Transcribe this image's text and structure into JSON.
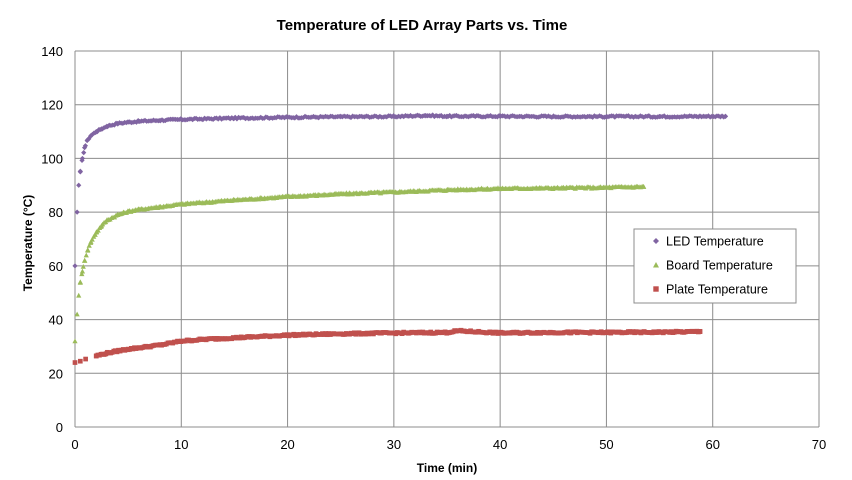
{
  "chart_data": {
    "type": "scatter",
    "title": "Temperature of LED Array Parts vs. Time",
    "xlabel": "Time (min)",
    "ylabel": "Temperature (°C)",
    "xlim": [
      0,
      70
    ],
    "ylim": [
      0,
      140
    ],
    "xticks": [
      "0",
      "10",
      "20",
      "30",
      "40",
      "50",
      "60",
      "70"
    ],
    "yticks": [
      "0",
      "20",
      "40",
      "60",
      "80",
      "100",
      "120",
      "140"
    ],
    "grid": true,
    "legend_position": "right",
    "series": [
      {
        "name": "LED Temperature",
        "marker": "diamond",
        "color": "#8064a2",
        "x": [
          0,
          0.2,
          0.35,
          0.5,
          0.7,
          0.9,
          1.2,
          1.5,
          2,
          2.5,
          3,
          4,
          5,
          6,
          8,
          10,
          15,
          20,
          25,
          30,
          33,
          35,
          40,
          45,
          50,
          55,
          61.2
        ],
        "y": [
          60,
          80,
          90,
          95,
          100,
          104,
          107,
          108.5,
          110,
          111,
          112,
          113,
          113.5,
          113.8,
          114.2,
          114.5,
          115,
          115.3,
          115.5,
          115.6,
          116,
          115.7,
          115.7,
          115.6,
          115.6,
          115.6,
          115.7
        ]
      },
      {
        "name": "Board Temperature",
        "marker": "triangle",
        "color": "#9bbb59",
        "x": [
          0,
          0.2,
          0.35,
          0.5,
          0.7,
          0.9,
          1.2,
          1.5,
          2,
          2.5,
          3,
          4,
          5,
          6,
          8,
          10,
          15,
          20,
          25,
          30,
          35,
          40,
          45,
          50,
          53.5
        ],
        "y": [
          32,
          42,
          49,
          54,
          58,
          62,
          66,
          69,
          72.5,
          75,
          77,
          79,
          80.3,
          81,
          82,
          83,
          84.5,
          85.8,
          86.8,
          87.5,
          88.3,
          88.8,
          89,
          89.2,
          89.5
        ]
      },
      {
        "name": "Plate Temperature",
        "marker": "square",
        "color": "#c0504d",
        "x": [
          0,
          0.5,
          1,
          2,
          3,
          4,
          5,
          6,
          8,
          10,
          12,
          15,
          20,
          25,
          30,
          35,
          36,
          40,
          45,
          50,
          55,
          58.8
        ],
        "y": [
          24,
          24.5,
          25.3,
          26.5,
          27.5,
          28.3,
          29,
          29.5,
          30.5,
          32,
          32.6,
          33.2,
          34.2,
          34.7,
          35,
          35.2,
          35.8,
          35,
          35.2,
          35.2,
          35.3,
          35.5
        ]
      }
    ]
  }
}
